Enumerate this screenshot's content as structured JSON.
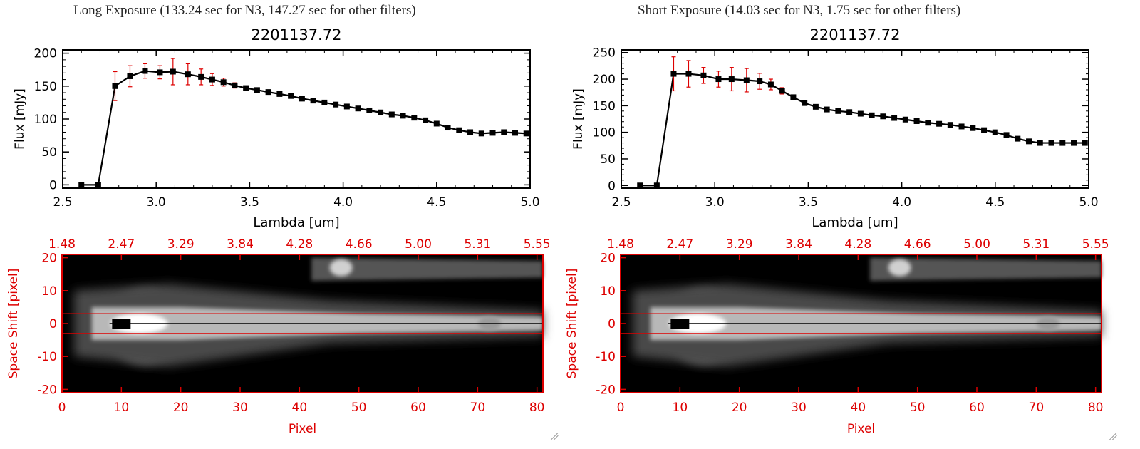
{
  "colors": {
    "accent": "#dd0000",
    "line": "#000000",
    "axis": "#000000",
    "background": "#ffffff"
  },
  "panels": [
    {
      "id": "long",
      "heading": "Long Exposure (133.24 sec for N3, 147.27 sec for other filters)"
    },
    {
      "id": "short",
      "heading": "Short Exposure (14.03 sec for N3, 1.75 sec for other filters)"
    }
  ],
  "chart_data": [
    {
      "type": "line",
      "panel": "long",
      "title": "2201137.72",
      "xlabel": "Lambda [um]",
      "ylabel": "Flux [mJy]",
      "xlim": [
        2.5,
        5.0
      ],
      "ylim": [
        -5,
        205
      ],
      "xticks": [
        "2.5",
        "3.0",
        "3.5",
        "4.0",
        "4.5",
        "5.0"
      ],
      "yticks": [
        "0",
        "50",
        "100",
        "150",
        "200"
      ],
      "x": [
        2.6,
        2.69,
        2.78,
        2.86,
        2.94,
        3.02,
        3.09,
        3.17,
        3.24,
        3.3,
        3.36,
        3.42,
        3.48,
        3.54,
        3.6,
        3.66,
        3.72,
        3.78,
        3.84,
        3.9,
        3.96,
        4.02,
        4.08,
        4.14,
        4.2,
        4.26,
        4.32,
        4.38,
        4.44,
        4.5,
        4.56,
        4.62,
        4.68,
        4.74,
        4.8,
        4.86,
        4.92,
        4.98
      ],
      "y": [
        0,
        0,
        150,
        165,
        173,
        171,
        172,
        168,
        164,
        160,
        156,
        151,
        147,
        144,
        141,
        138,
        135,
        131,
        128,
        125,
        122,
        119,
        116,
        113,
        110,
        107,
        105,
        102,
        98,
        93,
        87,
        83,
        80,
        78,
        79,
        80,
        79,
        78
      ],
      "yerr": [
        0,
        0,
        22,
        16,
        11,
        10,
        20,
        16,
        12,
        9,
        6,
        4,
        3,
        3,
        3,
        3,
        3,
        3,
        3,
        3,
        3,
        3,
        3,
        3,
        3,
        3,
        3,
        3,
        3,
        3,
        3,
        3,
        3,
        3,
        3,
        3,
        3,
        3
      ]
    },
    {
      "type": "line",
      "panel": "short",
      "title": "2201137.72",
      "xlabel": "Lambda [um]",
      "ylabel": "Flux [mJy]",
      "xlim": [
        2.5,
        5.0
      ],
      "ylim": [
        -5,
        255
      ],
      "xticks": [
        "2.5",
        "3.0",
        "3.5",
        "4.0",
        "4.5",
        "5.0"
      ],
      "yticks": [
        "0",
        "50",
        "100",
        "150",
        "200",
        "250"
      ],
      "x": [
        2.6,
        2.69,
        2.78,
        2.86,
        2.94,
        3.02,
        3.09,
        3.17,
        3.24,
        3.3,
        3.36,
        3.42,
        3.48,
        3.54,
        3.6,
        3.66,
        3.72,
        3.78,
        3.84,
        3.9,
        3.96,
        4.02,
        4.08,
        4.14,
        4.2,
        4.26,
        4.32,
        4.38,
        4.44,
        4.5,
        4.56,
        4.62,
        4.68,
        4.74,
        4.8,
        4.86,
        4.92,
        4.98
      ],
      "y": [
        0,
        0,
        210,
        210,
        207,
        200,
        200,
        198,
        196,
        190,
        178,
        166,
        155,
        148,
        143,
        140,
        138,
        135,
        132,
        130,
        127,
        124,
        121,
        118,
        116,
        114,
        111,
        108,
        104,
        100,
        95,
        88,
        83,
        80,
        80,
        80,
        80,
        80
      ],
      "yerr": [
        0,
        0,
        32,
        25,
        15,
        15,
        22,
        22,
        15,
        10,
        6,
        4,
        3,
        3,
        3,
        3,
        3,
        3,
        3,
        3,
        3,
        3,
        3,
        3,
        3,
        3,
        3,
        3,
        3,
        3,
        3,
        3,
        3,
        3,
        3,
        3,
        3,
        3
      ]
    },
    {
      "type": "heatmap",
      "panel": "long",
      "xlabel": "Pixel",
      "ylabel": "Space Shift [pixel]",
      "xlim": [
        0,
        81
      ],
      "ylim": [
        -21,
        21
      ],
      "xticks": [
        "0",
        "10",
        "20",
        "30",
        "40",
        "50",
        "60",
        "70",
        "80"
      ],
      "yticks": [
        "-20",
        "-10",
        "0",
        "10",
        "20"
      ],
      "top_ticks": [
        "1.48",
        "2.47",
        "3.29",
        "3.84",
        "4.28",
        "4.66",
        "5.00",
        "5.31",
        "5.55"
      ],
      "aperture": [
        -3,
        3
      ],
      "source_pixel": 10,
      "companion_pixel": 47,
      "companion_shift": 17
    },
    {
      "type": "heatmap",
      "panel": "short",
      "xlabel": "Pixel",
      "ylabel": "Space Shift [pixel]",
      "xlim": [
        0,
        81
      ],
      "ylim": [
        -21,
        21
      ],
      "xticks": [
        "0",
        "10",
        "20",
        "30",
        "40",
        "50",
        "60",
        "70",
        "80"
      ],
      "yticks": [
        "-20",
        "-10",
        "0",
        "10",
        "20"
      ],
      "top_ticks": [
        "1.48",
        "2.47",
        "3.29",
        "3.84",
        "4.28",
        "4.66",
        "5.00",
        "5.31",
        "5.55"
      ],
      "aperture": [
        -3,
        3
      ],
      "source_pixel": 10,
      "companion_pixel": 47,
      "companion_shift": 17
    }
  ]
}
